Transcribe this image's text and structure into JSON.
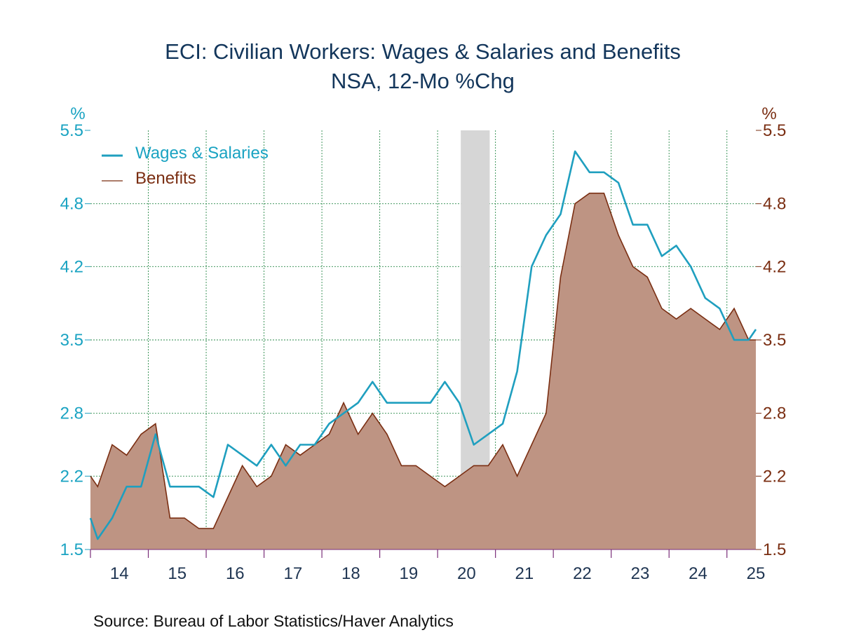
{
  "chart_data": {
    "type": "line",
    "title": "ECI: Civilian Workers: Wages & Salaries and Benefits",
    "subtitle": "NSA, 12-Mo %Chg",
    "left_unit": "%",
    "right_unit": "%",
    "source": "Source:  Bureau of Labor Statistics/Haver Analytics",
    "ylim": [
      1.5,
      5.5
    ],
    "yticks": [
      "1.5",
      "2.2",
      "2.8",
      "3.5",
      "4.2",
      "4.8",
      "5.5"
    ],
    "ytick_values": [
      1.5,
      2.2,
      2.8,
      3.5,
      4.2,
      4.8,
      5.5
    ],
    "xlim": [
      2013.5,
      2025.0
    ],
    "xtick_labels": [
      "14",
      "15",
      "16",
      "17",
      "18",
      "19",
      "20",
      "21",
      "22",
      "23",
      "24",
      "25"
    ],
    "xtick_label_positions": [
      2014.0,
      2015.0,
      2016.0,
      2017.0,
      2018.0,
      2019.0,
      2020.0,
      2021.0,
      2022.0,
      2023.0,
      2024.0,
      2025.0
    ],
    "x_grid_years": [
      2015.5,
      2021.5,
      2024.5
    ],
    "recession_band": [
      2019.9,
      2020.4
    ],
    "legend_position": "top-left",
    "grid": true,
    "series": [
      {
        "name": "Wages & Salaries",
        "color": "#1f9fbf",
        "style": "line",
        "x": [
          2013.5,
          2013.625,
          2013.875,
          2014.125,
          2014.375,
          2014.625,
          2014.875,
          2015.125,
          2015.375,
          2015.625,
          2015.875,
          2016.125,
          2016.375,
          2016.625,
          2016.875,
          2017.125,
          2017.375,
          2017.625,
          2017.875,
          2018.125,
          2018.375,
          2018.625,
          2018.875,
          2019.125,
          2019.375,
          2019.625,
          2019.875,
          2020.125,
          2020.375,
          2020.625,
          2020.875,
          2021.125,
          2021.375,
          2021.625,
          2021.875,
          2022.125,
          2022.375,
          2022.625,
          2022.875,
          2023.125,
          2023.375,
          2023.625,
          2023.875,
          2024.125,
          2024.375,
          2024.625,
          2024.875,
          2025.0
        ],
        "y": [
          1.8,
          1.6,
          1.8,
          2.1,
          2.1,
          2.6,
          2.1,
          2.1,
          2.1,
          2.0,
          2.5,
          2.4,
          2.3,
          2.5,
          2.3,
          2.5,
          2.5,
          2.7,
          2.8,
          2.9,
          3.1,
          2.9,
          2.9,
          2.9,
          2.9,
          3.1,
          2.9,
          2.5,
          2.6,
          2.7,
          3.2,
          4.2,
          4.5,
          4.7,
          5.3,
          5.1,
          5.1,
          5.0,
          4.6,
          4.6,
          4.3,
          4.4,
          4.2,
          3.9,
          3.8,
          3.5,
          3.5,
          3.6
        ]
      },
      {
        "name": "Benefits",
        "color": "#7a2e12",
        "fill": "#be9483",
        "style": "area",
        "x": [
          2013.5,
          2013.625,
          2013.875,
          2014.125,
          2014.375,
          2014.625,
          2014.875,
          2015.125,
          2015.375,
          2015.625,
          2015.875,
          2016.125,
          2016.375,
          2016.625,
          2016.875,
          2017.125,
          2017.375,
          2017.625,
          2017.875,
          2018.125,
          2018.375,
          2018.625,
          2018.875,
          2019.125,
          2019.375,
          2019.625,
          2019.875,
          2020.125,
          2020.375,
          2020.625,
          2020.875,
          2021.125,
          2021.375,
          2021.625,
          2021.875,
          2022.125,
          2022.375,
          2022.625,
          2022.875,
          2023.125,
          2023.375,
          2023.625,
          2023.875,
          2024.125,
          2024.375,
          2024.625,
          2024.875,
          2025.0
        ],
        "y": [
          2.2,
          2.1,
          2.5,
          2.4,
          2.6,
          2.7,
          1.8,
          1.8,
          1.7,
          1.7,
          2.0,
          2.3,
          2.1,
          2.2,
          2.5,
          2.4,
          2.5,
          2.6,
          2.9,
          2.6,
          2.8,
          2.6,
          2.3,
          2.3,
          2.2,
          2.1,
          2.2,
          2.3,
          2.3,
          2.5,
          2.2,
          2.5,
          2.8,
          4.1,
          4.8,
          4.9,
          4.9,
          4.5,
          4.2,
          4.1,
          3.8,
          3.7,
          3.8,
          3.7,
          3.6,
          3.8,
          3.5,
          3.5
        ]
      }
    ]
  }
}
